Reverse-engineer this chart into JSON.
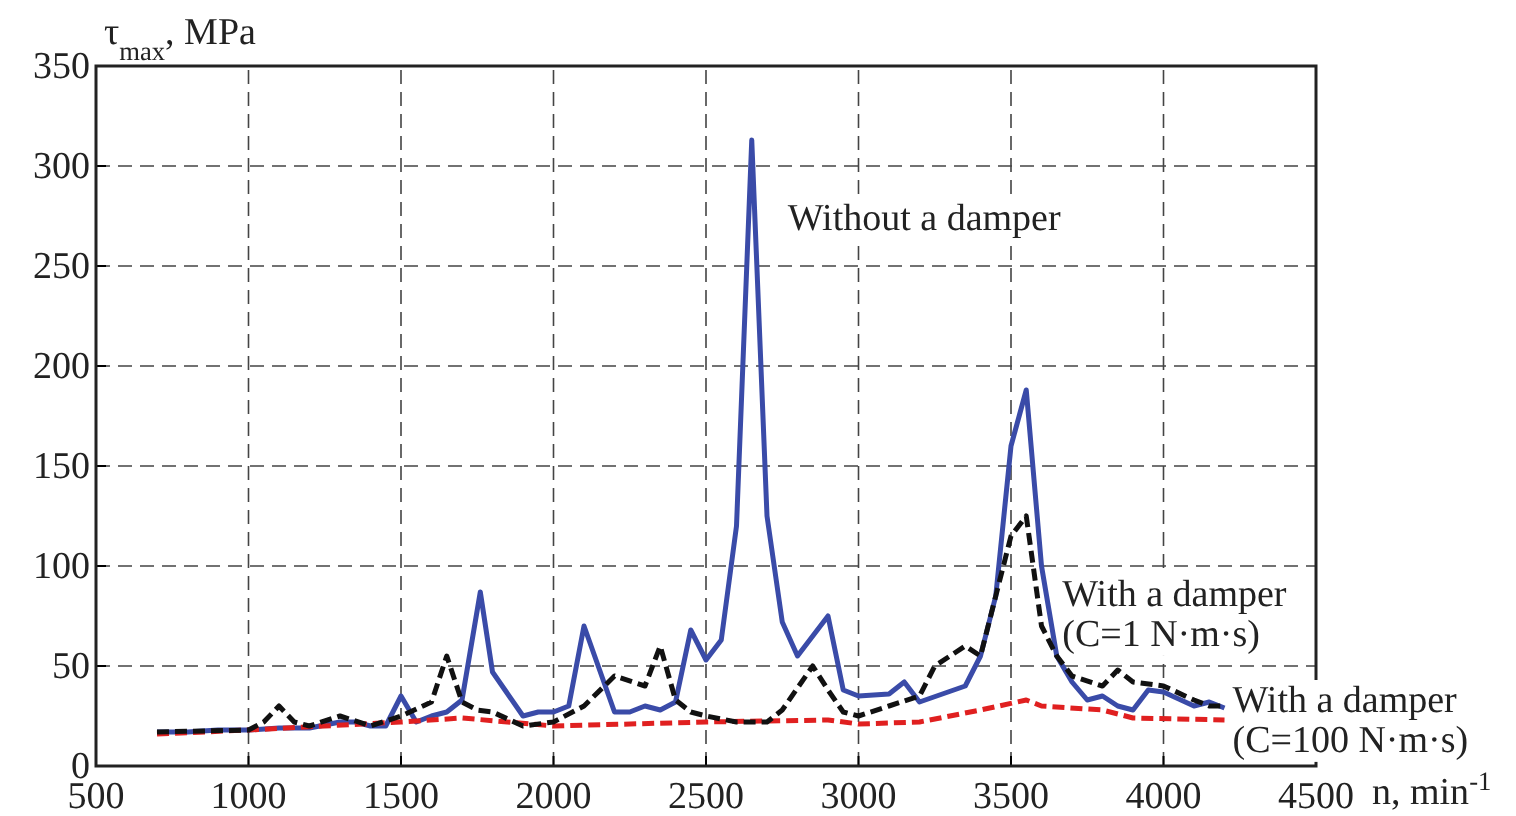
{
  "chart_data": {
    "type": "line",
    "xlabel": "n, min$^{-1}$",
    "ylabel": "τ$_{max}$, MPa",
    "xlim": [
      500,
      4500
    ],
    "xticks": [
      500,
      1000,
      1500,
      2000,
      2500,
      3000,
      3500,
      4000,
      4500
    ],
    "ylim": [
      0,
      350
    ],
    "yticks": [
      0,
      50,
      100,
      150,
      200,
      250,
      300,
      350
    ],
    "grid": true,
    "series": [
      {
        "name": "Without a damper",
        "color": "#3a4ba8",
        "line_style": "solid",
        "x": [
          700,
          800,
          900,
          1000,
          1100,
          1200,
          1300,
          1350,
          1400,
          1450,
          1500,
          1550,
          1600,
          1650,
          1700,
          1760,
          1800,
          1900,
          1950,
          2000,
          2050,
          2100,
          2200,
          2250,
          2300,
          2350,
          2400,
          2450,
          2500,
          2550,
          2600,
          2650,
          2700,
          2750,
          2800,
          2900,
          2950,
          3000,
          3100,
          3150,
          3200,
          3350,
          3400,
          3450,
          3500,
          3550,
          3600,
          3650,
          3700,
          3750,
          3800,
          3850,
          3900,
          3950,
          4000,
          4100,
          4150,
          4200
        ],
        "values": [
          17,
          17,
          18,
          18,
          19,
          19,
          22,
          22,
          20,
          20,
          35,
          22,
          25,
          27,
          33,
          87,
          47,
          25,
          27,
          27,
          30,
          70,
          27,
          27,
          30,
          28,
          32,
          68,
          53,
          63,
          120,
          313,
          125,
          72,
          55,
          75,
          38,
          35,
          36,
          42,
          32,
          40,
          55,
          85,
          160,
          188,
          100,
          55,
          42,
          33,
          35,
          30,
          28,
          38,
          37,
          30,
          32,
          29
        ]
      },
      {
        "name": "With a damper\n(C=1 N·m·s)",
        "color": "#111111",
        "line_style": "dashed",
        "x": [
          700,
          1000,
          1050,
          1100,
          1150,
          1200,
          1300,
          1400,
          1500,
          1600,
          1650,
          1700,
          1750,
          1800,
          1900,
          2000,
          2100,
          2200,
          2300,
          2350,
          2400,
          2450,
          2500,
          2600,
          2700,
          2750,
          2850,
          2900,
          2950,
          3000,
          3100,
          3200,
          3250,
          3350,
          3400,
          3450,
          3500,
          3550,
          3600,
          3650,
          3700,
          3800,
          3850,
          3900,
          4000,
          4100,
          4150,
          4200
        ],
        "values": [
          17,
          18,
          22,
          30,
          22,
          20,
          25,
          20,
          25,
          32,
          55,
          32,
          28,
          27,
          20,
          22,
          30,
          45,
          40,
          60,
          33,
          27,
          25,
          22,
          22,
          28,
          50,
          38,
          27,
          25,
          30,
          35,
          50,
          60,
          55,
          85,
          115,
          125,
          70,
          55,
          45,
          40,
          48,
          42,
          40,
          33,
          30,
          30
        ]
      },
      {
        "name": "With a damper\n(C=100 N·m·s)",
        "color": "#e02020",
        "line_style": "dashed",
        "x": [
          700,
          1000,
          1500,
          1700,
          2000,
          2500,
          2900,
          3000,
          3200,
          3400,
          3550,
          3600,
          3800,
          3900,
          4200
        ],
        "values": [
          16,
          18,
          22,
          24,
          20,
          22,
          23,
          21,
          22,
          28,
          33,
          30,
          28,
          24,
          23
        ]
      }
    ]
  }
}
